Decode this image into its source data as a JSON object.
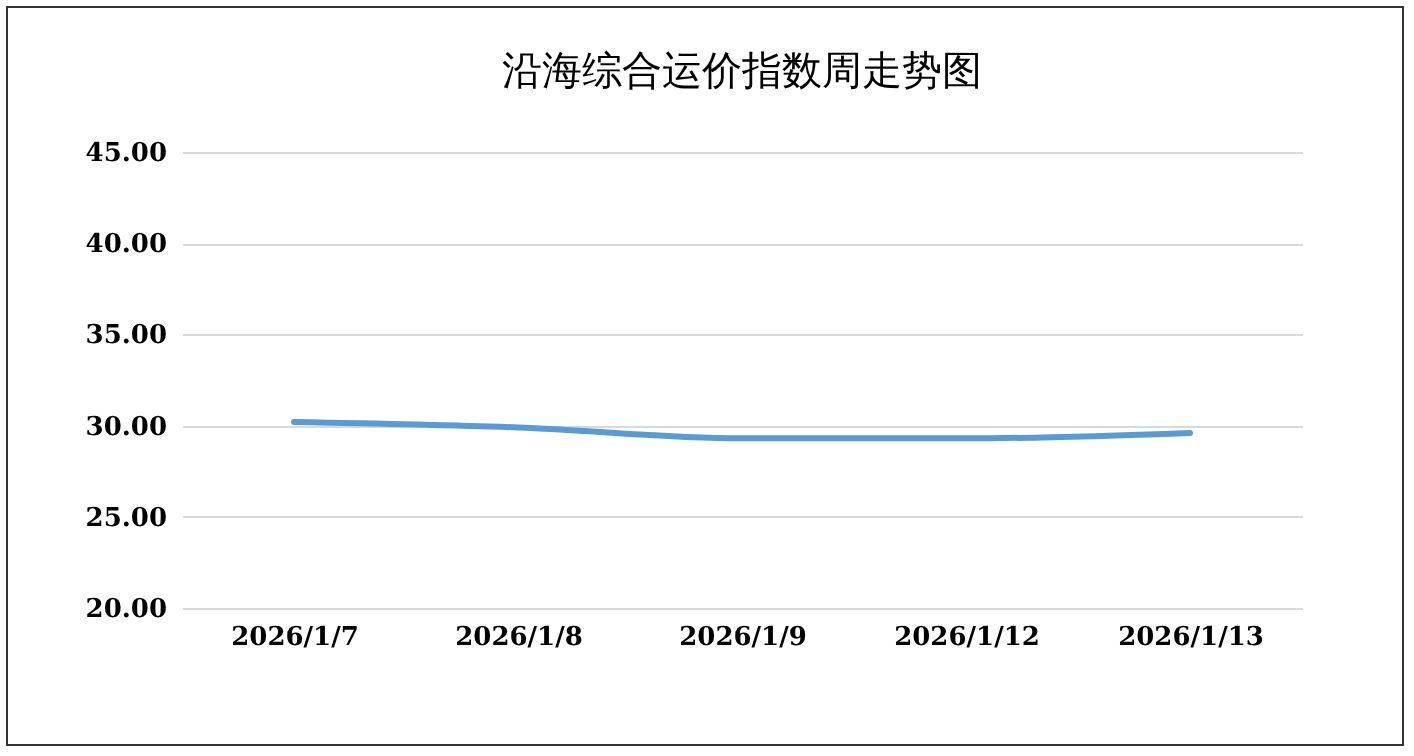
{
  "chart_data": {
    "type": "line",
    "title": "沿海综合运价指数周走势图",
    "categories": [
      "2026/1/7",
      "2026/1/8",
      "2026/1/9",
      "2026/1/12",
      "2026/1/13"
    ],
    "series": [
      {
        "color": "#5b9bd5",
        "values": [
          30.2,
          29.9,
          29.3,
          29.3,
          29.6
        ]
      }
    ],
    "ylim": [
      20,
      45
    ],
    "yticks": [
      {
        "value": 20,
        "label": "20.00"
      },
      {
        "value": 25,
        "label": "25.00"
      },
      {
        "value": 30,
        "label": "30.00"
      },
      {
        "value": 35,
        "label": "35.00"
      },
      {
        "value": 40,
        "label": "40.00"
      },
      {
        "value": 45,
        "label": "45.00"
      }
    ],
    "grid": "y",
    "marker": "none",
    "line_style": "solid"
  }
}
